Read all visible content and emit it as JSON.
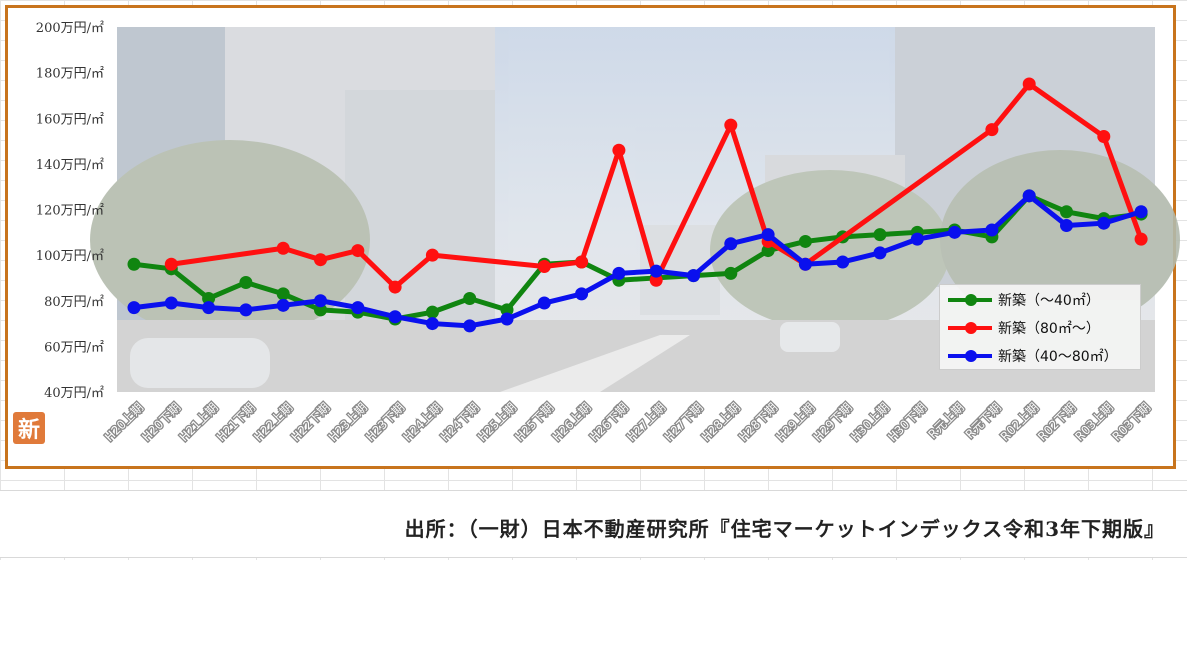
{
  "chart_data": {
    "type": "line",
    "title": "",
    "xlabel": "",
    "ylabel": "",
    "ylim": [
      40,
      200
    ],
    "y_ticks": [
      "40万円/㎡",
      "60万円/㎡",
      "80万円/㎡",
      "100万円/㎡",
      "120万円/㎡",
      "140万円/㎡",
      "160万円/㎡",
      "180万円/㎡",
      "200万円/㎡"
    ],
    "categories": [
      "H20上期",
      "H20下期",
      "H21上期",
      "H21下期",
      "H22上期",
      "H22下期",
      "H23上期",
      "H23下期",
      "H24上期",
      "H24下期",
      "H25上期",
      "H25下期",
      "H26上期",
      "H26下期",
      "H27上期",
      "H27下期",
      "H28上期",
      "H28下期",
      "H29上期",
      "H29下期",
      "H30上期",
      "H30下期",
      "R元上期",
      "R元下期",
      "R02上期",
      "R02下期",
      "R03上期",
      "R03下期"
    ],
    "series": [
      {
        "name": "新築（～40㎡）",
        "color": "#108510",
        "values": [
          96,
          94,
          81,
          88,
          83,
          76,
          75,
          72,
          75,
          81,
          76,
          96,
          97,
          89,
          90,
          91,
          92,
          102,
          106,
          108,
          109,
          110,
          111,
          108,
          126,
          119,
          116,
          118
        ]
      },
      {
        "name": "新築（80㎡～）",
        "color": "#ff1010",
        "values": [
          null,
          96,
          null,
          null,
          103,
          98,
          102,
          86,
          100,
          null,
          null,
          95,
          97,
          146,
          89,
          null,
          157,
          106,
          96,
          null,
          null,
          null,
          null,
          155,
          175,
          null,
          152,
          107
        ]
      },
      {
        "name": "新築（40～80㎡）",
        "color": "#0a10ee",
        "values": [
          77,
          79,
          77,
          76,
          78,
          80,
          77,
          73,
          70,
          69,
          72,
          79,
          83,
          92,
          93,
          91,
          105,
          109,
          96,
          97,
          101,
          107,
          110,
          111,
          126,
          113,
          114,
          119
        ]
      }
    ],
    "grid": false,
    "legend_position": "bottom-right"
  },
  "badge_text": "新",
  "source_text": "出所：（一財）日本不動産研究所『住宅マーケットインデックス令和3年下期版』"
}
